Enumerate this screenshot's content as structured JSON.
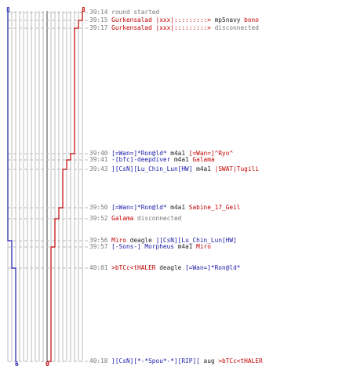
{
  "scores": {
    "blue_start": "8",
    "red_start": "8",
    "blue_end": "6",
    "red_end": "0"
  },
  "colors": {
    "blue_team": "#1a1aa8",
    "red_team": "#c00000",
    "grid": "#bbbbbb",
    "dashed": "#bbbbbb",
    "center_line": "#777777",
    "time": "#777777"
  },
  "events": [
    {
      "time": "39:14",
      "segments": [
        {
          "text": "round started",
          "color": "gray"
        }
      ]
    },
    {
      "time": "39:15",
      "segments": [
        {
          "text": "Gurkensalad |xxx|:::::::::> ",
          "color": "red"
        },
        {
          "text": "mp5navy ",
          "color": "dark"
        },
        {
          "text": "bono",
          "color": "red"
        }
      ]
    },
    {
      "time": "39:17",
      "segments": [
        {
          "text": "Gurkensalad |xxx|:::::::::> ",
          "color": "red"
        },
        {
          "text": "disconnected",
          "color": "gray"
        }
      ]
    },
    {
      "time": "39:40",
      "segments": [
        {
          "text": "[=Wan=]*Ron@ld* ",
          "color": "blue"
        },
        {
          "text": "m4a1 ",
          "color": "dark"
        },
        {
          "text": "[=Wan=]^Ryo^",
          "color": "red"
        }
      ]
    },
    {
      "time": "39:41",
      "segments": [
        {
          "text": "-[bfc]-deepdiver ",
          "color": "blue"
        },
        {
          "text": "m4a1 ",
          "color": "dark"
        },
        {
          "text": "Galama",
          "color": "red"
        }
      ]
    },
    {
      "time": "39:43",
      "segments": [
        {
          "text": "][CsN][Lu_Chin_Lun[HW] ",
          "color": "blue"
        },
        {
          "text": "m4a1 ",
          "color": "dark"
        },
        {
          "text": "|SWAT|Tugili",
          "color": "red"
        }
      ]
    },
    {
      "time": "39:50",
      "segments": [
        {
          "text": "[=Wan=]*Ron@ld* ",
          "color": "blue"
        },
        {
          "text": "m4a1 ",
          "color": "dark"
        },
        {
          "text": "Sabine_17_Geil",
          "color": "red"
        }
      ]
    },
    {
      "time": "39:52",
      "segments": [
        {
          "text": "Galama ",
          "color": "red"
        },
        {
          "text": "disconnected",
          "color": "gray"
        }
      ]
    },
    {
      "time": "39:56",
      "segments": [
        {
          "text": "Miro ",
          "color": "red"
        },
        {
          "text": "deagle ",
          "color": "dark"
        },
        {
          "text": "][CsN][Lu_Chin_Lun[HW]",
          "color": "blue"
        }
      ]
    },
    {
      "time": "39:57",
      "segments": [
        {
          "text": "[-Sons-] Morpheus ",
          "color": "blue"
        },
        {
          "text": "m4a1 ",
          "color": "dark"
        },
        {
          "text": "Miro",
          "color": "red"
        }
      ]
    },
    {
      "time": "40:01",
      "segments": [
        {
          "text": ">bTCc<tHALER ",
          "color": "red"
        },
        {
          "text": "deagle ",
          "color": "dark"
        },
        {
          "text": "[=Wan=]*Ron@ld*",
          "color": "blue"
        }
      ]
    },
    {
      "time": "40:18",
      "segments": [
        {
          "text": "][CsN][*-*Spou*-*][RIP][ ",
          "color": "blue"
        },
        {
          "text": "aug ",
          "color": "dark"
        },
        {
          "text": ">bTCc<tHALER",
          "color": "red"
        }
      ]
    }
  ]
}
